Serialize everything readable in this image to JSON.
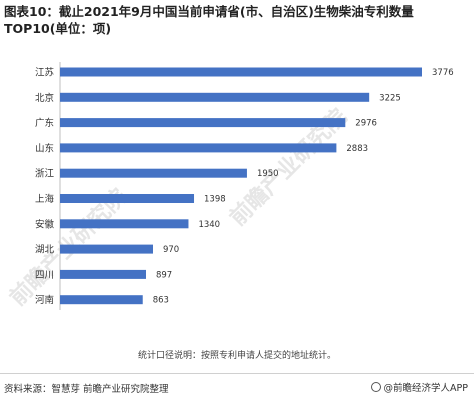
{
  "title": "图表10：截止2021年9月中国当前申请省(市、自治区)生物柴油专利数量TOP10(单位：项)",
  "note": "统计口径说明：按照专利申请人提交的地址统计。",
  "source": "资料来源：智慧芽 前瞻产业研究院整理",
  "brand": "@前瞻经济学人APP",
  "watermark": "前瞻产业研究院",
  "colors": {
    "bar": "#4472C4",
    "axis": "#bfbfbf"
  },
  "chart_data": {
    "type": "bar",
    "orientation": "horizontal",
    "categories": [
      "江苏",
      "北京",
      "广东",
      "山东",
      "浙江",
      "上海",
      "安徽",
      "湖北",
      "四川",
      "河南"
    ],
    "values": [
      3776,
      3225,
      2976,
      2883,
      1950,
      1398,
      1340,
      970,
      897,
      863
    ],
    "xlim": [
      0,
      3776
    ],
    "grid": false,
    "legend": "none"
  }
}
